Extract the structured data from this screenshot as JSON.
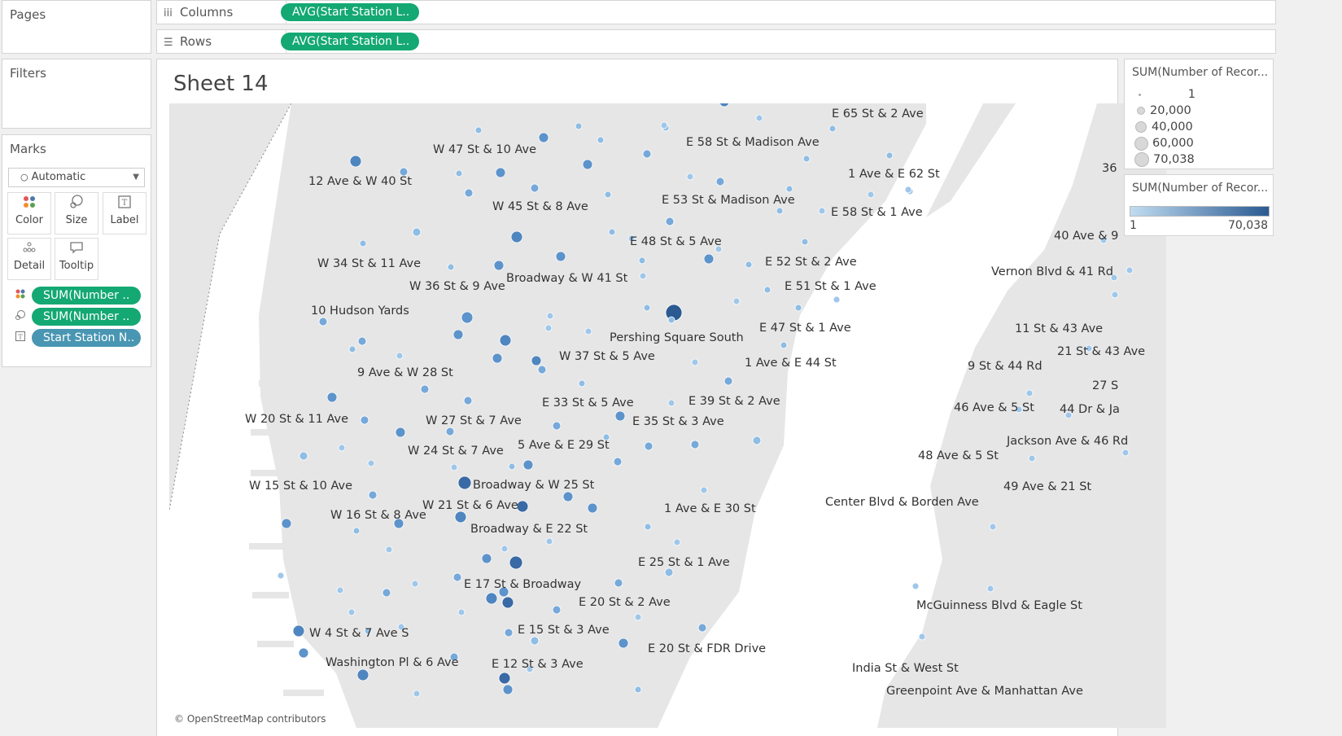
{
  "shelves": {
    "pages_label": "Pages",
    "columns_label": "Columns",
    "columns_pill": "AVG(Start Station L..",
    "rows_label": "Rows",
    "rows_pill": "AVG(Start Station L..",
    "filters_label": "Filters"
  },
  "marks": {
    "title": "Marks",
    "mark_type": "Automatic",
    "buttons": {
      "color": "Color",
      "size": "Size",
      "label": "Label",
      "detail": "Detail",
      "tooltip": "Tooltip"
    },
    "pills": [
      {
        "icon": "color-dots-icon",
        "text": "SUM(Number ..",
        "color": "#14a873"
      },
      {
        "icon": "size-icon",
        "text": "SUM(Number ..",
        "color": "#14a873"
      },
      {
        "icon": "label-icon",
        "text": "Start Station N..",
        "color": "#4996b2"
      }
    ]
  },
  "sheet": {
    "title": "Sheet 14"
  },
  "map": {
    "attribution": "© OpenStreetMap contributors",
    "land_color": "#e6e6e6",
    "water_color": "#ffffff",
    "labels": [
      "E 65 St & 2 Ave",
      "E 58 St & Madison Ave",
      "W 47 St & 10 Ave",
      "1 Ave & E 62 St",
      "12 Ave & W 40 St",
      "E 53 St & Madison Ave",
      "W 45 St & 8 Ave",
      "E 58 St & 1 Ave",
      "E 48 St & 5 Ave",
      "W 34 St & 11 Ave",
      "E 52 St & 2 Ave",
      "Broadway & W 41 St",
      "W 36 St & 9 Ave",
      "E 51 St & 1 Ave",
      "10 Hudson Yards",
      "Pershing Square South",
      "E 47 St & 1 Ave",
      "W 37 St & 5 Ave",
      "1 Ave & E 44 St",
      "9 Ave & W 28 St",
      "E 33 St & 5 Ave",
      "E 39 St & 2 Ave",
      "W 20 St & 11 Ave",
      "W 27 St & 7 Ave",
      "E 35 St & 3 Ave",
      "5 Ave & E 29 St",
      "W 24 St & 7 Ave",
      "Broadway & W 25 St",
      "W 15 St & 10 Ave",
      "W 21 St & 6 Ave",
      "1 Ave & E 30 St",
      "W 16 St & 8 Ave",
      "Broadway & E 22 St",
      "E 25 St & 1 Ave",
      "E 17 St & Broadway",
      "E 20 St & 2 Ave",
      "E 15 St & 3 Ave",
      "W 4 St & 7 Ave S",
      "E 20 St & FDR Drive",
      "Washington Pl & 6 Ave",
      "E 12 St & 3 Ave",
      "36",
      "40 Ave & 9",
      "Vernon Blvd & 41 Rd",
      "11 St & 43 Ave",
      "21 St & 43 Ave",
      "9 St & 44 Rd",
      "27 S",
      "46 Ave & 5 St",
      "44 Dr & Ja",
      "Jackson Ave & 46 Rd",
      "48 Ave & 5 St",
      "49 Ave & 21 St",
      "Center Blvd & Borden Ave",
      "McGuinness Blvd & Eagle St",
      "India St & West St",
      "Greenpoint Ave & Manhattan Ave"
    ]
  },
  "legend_size": {
    "title": "SUM(Number of Recor...",
    "items": [
      "1",
      "20,000",
      "40,000",
      "60,000",
      "70,038"
    ]
  },
  "legend_color": {
    "title": "SUM(Number of Recor...",
    "min": "1",
    "max": "70,038",
    "color_low": "#c0dcf1",
    "color_high": "#2a5a91"
  }
}
